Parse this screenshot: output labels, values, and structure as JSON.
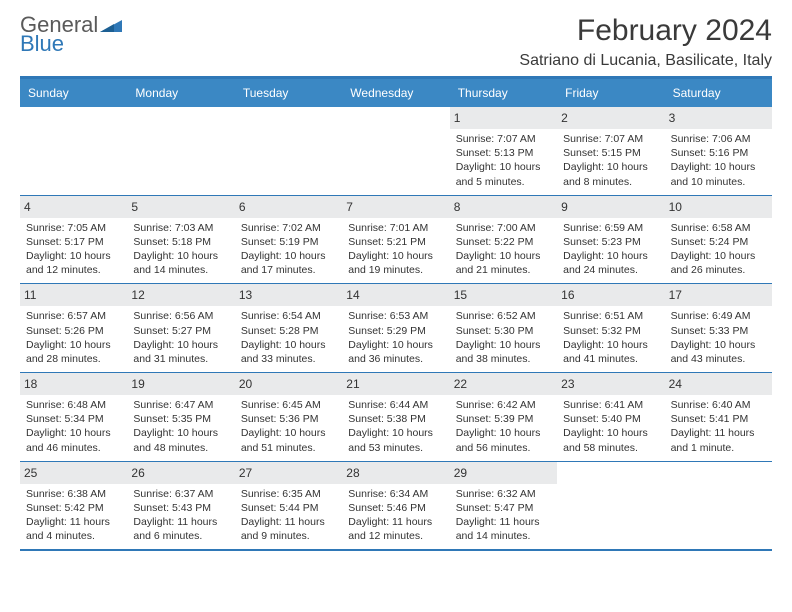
{
  "logo": {
    "word1": "General",
    "word2": "Blue"
  },
  "title": "February 2024",
  "location": "Satriano di Lucania, Basilicate, Italy",
  "colors": {
    "accent": "#2f78b7",
    "header_bg": "#3b88c4",
    "daynum_bg": "#e9eaeb"
  },
  "day_headers": [
    "Sunday",
    "Monday",
    "Tuesday",
    "Wednesday",
    "Thursday",
    "Friday",
    "Saturday"
  ],
  "weeks": [
    [
      null,
      null,
      null,
      null,
      {
        "n": "1",
        "sunrise": "7:07 AM",
        "sunset": "5:13 PM",
        "day_h": "10",
        "day_m": "5"
      },
      {
        "n": "2",
        "sunrise": "7:07 AM",
        "sunset": "5:15 PM",
        "day_h": "10",
        "day_m": "8"
      },
      {
        "n": "3",
        "sunrise": "7:06 AM",
        "sunset": "5:16 PM",
        "day_h": "10",
        "day_m": "10"
      }
    ],
    [
      {
        "n": "4",
        "sunrise": "7:05 AM",
        "sunset": "5:17 PM",
        "day_h": "10",
        "day_m": "12"
      },
      {
        "n": "5",
        "sunrise": "7:03 AM",
        "sunset": "5:18 PM",
        "day_h": "10",
        "day_m": "14"
      },
      {
        "n": "6",
        "sunrise": "7:02 AM",
        "sunset": "5:19 PM",
        "day_h": "10",
        "day_m": "17"
      },
      {
        "n": "7",
        "sunrise": "7:01 AM",
        "sunset": "5:21 PM",
        "day_h": "10",
        "day_m": "19"
      },
      {
        "n": "8",
        "sunrise": "7:00 AM",
        "sunset": "5:22 PM",
        "day_h": "10",
        "day_m": "21"
      },
      {
        "n": "9",
        "sunrise": "6:59 AM",
        "sunset": "5:23 PM",
        "day_h": "10",
        "day_m": "24"
      },
      {
        "n": "10",
        "sunrise": "6:58 AM",
        "sunset": "5:24 PM",
        "day_h": "10",
        "day_m": "26"
      }
    ],
    [
      {
        "n": "11",
        "sunrise": "6:57 AM",
        "sunset": "5:26 PM",
        "day_h": "10",
        "day_m": "28"
      },
      {
        "n": "12",
        "sunrise": "6:56 AM",
        "sunset": "5:27 PM",
        "day_h": "10",
        "day_m": "31"
      },
      {
        "n": "13",
        "sunrise": "6:54 AM",
        "sunset": "5:28 PM",
        "day_h": "10",
        "day_m": "33"
      },
      {
        "n": "14",
        "sunrise": "6:53 AM",
        "sunset": "5:29 PM",
        "day_h": "10",
        "day_m": "36"
      },
      {
        "n": "15",
        "sunrise": "6:52 AM",
        "sunset": "5:30 PM",
        "day_h": "10",
        "day_m": "38"
      },
      {
        "n": "16",
        "sunrise": "6:51 AM",
        "sunset": "5:32 PM",
        "day_h": "10",
        "day_m": "41"
      },
      {
        "n": "17",
        "sunrise": "6:49 AM",
        "sunset": "5:33 PM",
        "day_h": "10",
        "day_m": "43"
      }
    ],
    [
      {
        "n": "18",
        "sunrise": "6:48 AM",
        "sunset": "5:34 PM",
        "day_h": "10",
        "day_m": "46"
      },
      {
        "n": "19",
        "sunrise": "6:47 AM",
        "sunset": "5:35 PM",
        "day_h": "10",
        "day_m": "48"
      },
      {
        "n": "20",
        "sunrise": "6:45 AM",
        "sunset": "5:36 PM",
        "day_h": "10",
        "day_m": "51"
      },
      {
        "n": "21",
        "sunrise": "6:44 AM",
        "sunset": "5:38 PM",
        "day_h": "10",
        "day_m": "53"
      },
      {
        "n": "22",
        "sunrise": "6:42 AM",
        "sunset": "5:39 PM",
        "day_h": "10",
        "day_m": "56"
      },
      {
        "n": "23",
        "sunrise": "6:41 AM",
        "sunset": "5:40 PM",
        "day_h": "10",
        "day_m": "58"
      },
      {
        "n": "24",
        "sunrise": "6:40 AM",
        "sunset": "5:41 PM",
        "day_h": "11",
        "day_m": "1"
      }
    ],
    [
      {
        "n": "25",
        "sunrise": "6:38 AM",
        "sunset": "5:42 PM",
        "day_h": "11",
        "day_m": "4"
      },
      {
        "n": "26",
        "sunrise": "6:37 AM",
        "sunset": "5:43 PM",
        "day_h": "11",
        "day_m": "6"
      },
      {
        "n": "27",
        "sunrise": "6:35 AM",
        "sunset": "5:44 PM",
        "day_h": "11",
        "day_m": "9"
      },
      {
        "n": "28",
        "sunrise": "6:34 AM",
        "sunset": "5:46 PM",
        "day_h": "11",
        "day_m": "12"
      },
      {
        "n": "29",
        "sunrise": "6:32 AM",
        "sunset": "5:47 PM",
        "day_h": "11",
        "day_m": "14"
      },
      null,
      null
    ]
  ],
  "labels": {
    "sunrise": "Sunrise:",
    "sunset": "Sunset:",
    "daylight_pre": "Daylight:",
    "hours_word": "hours",
    "and_word": "and",
    "minute_word": "minute",
    "minutes_word": "minutes"
  }
}
